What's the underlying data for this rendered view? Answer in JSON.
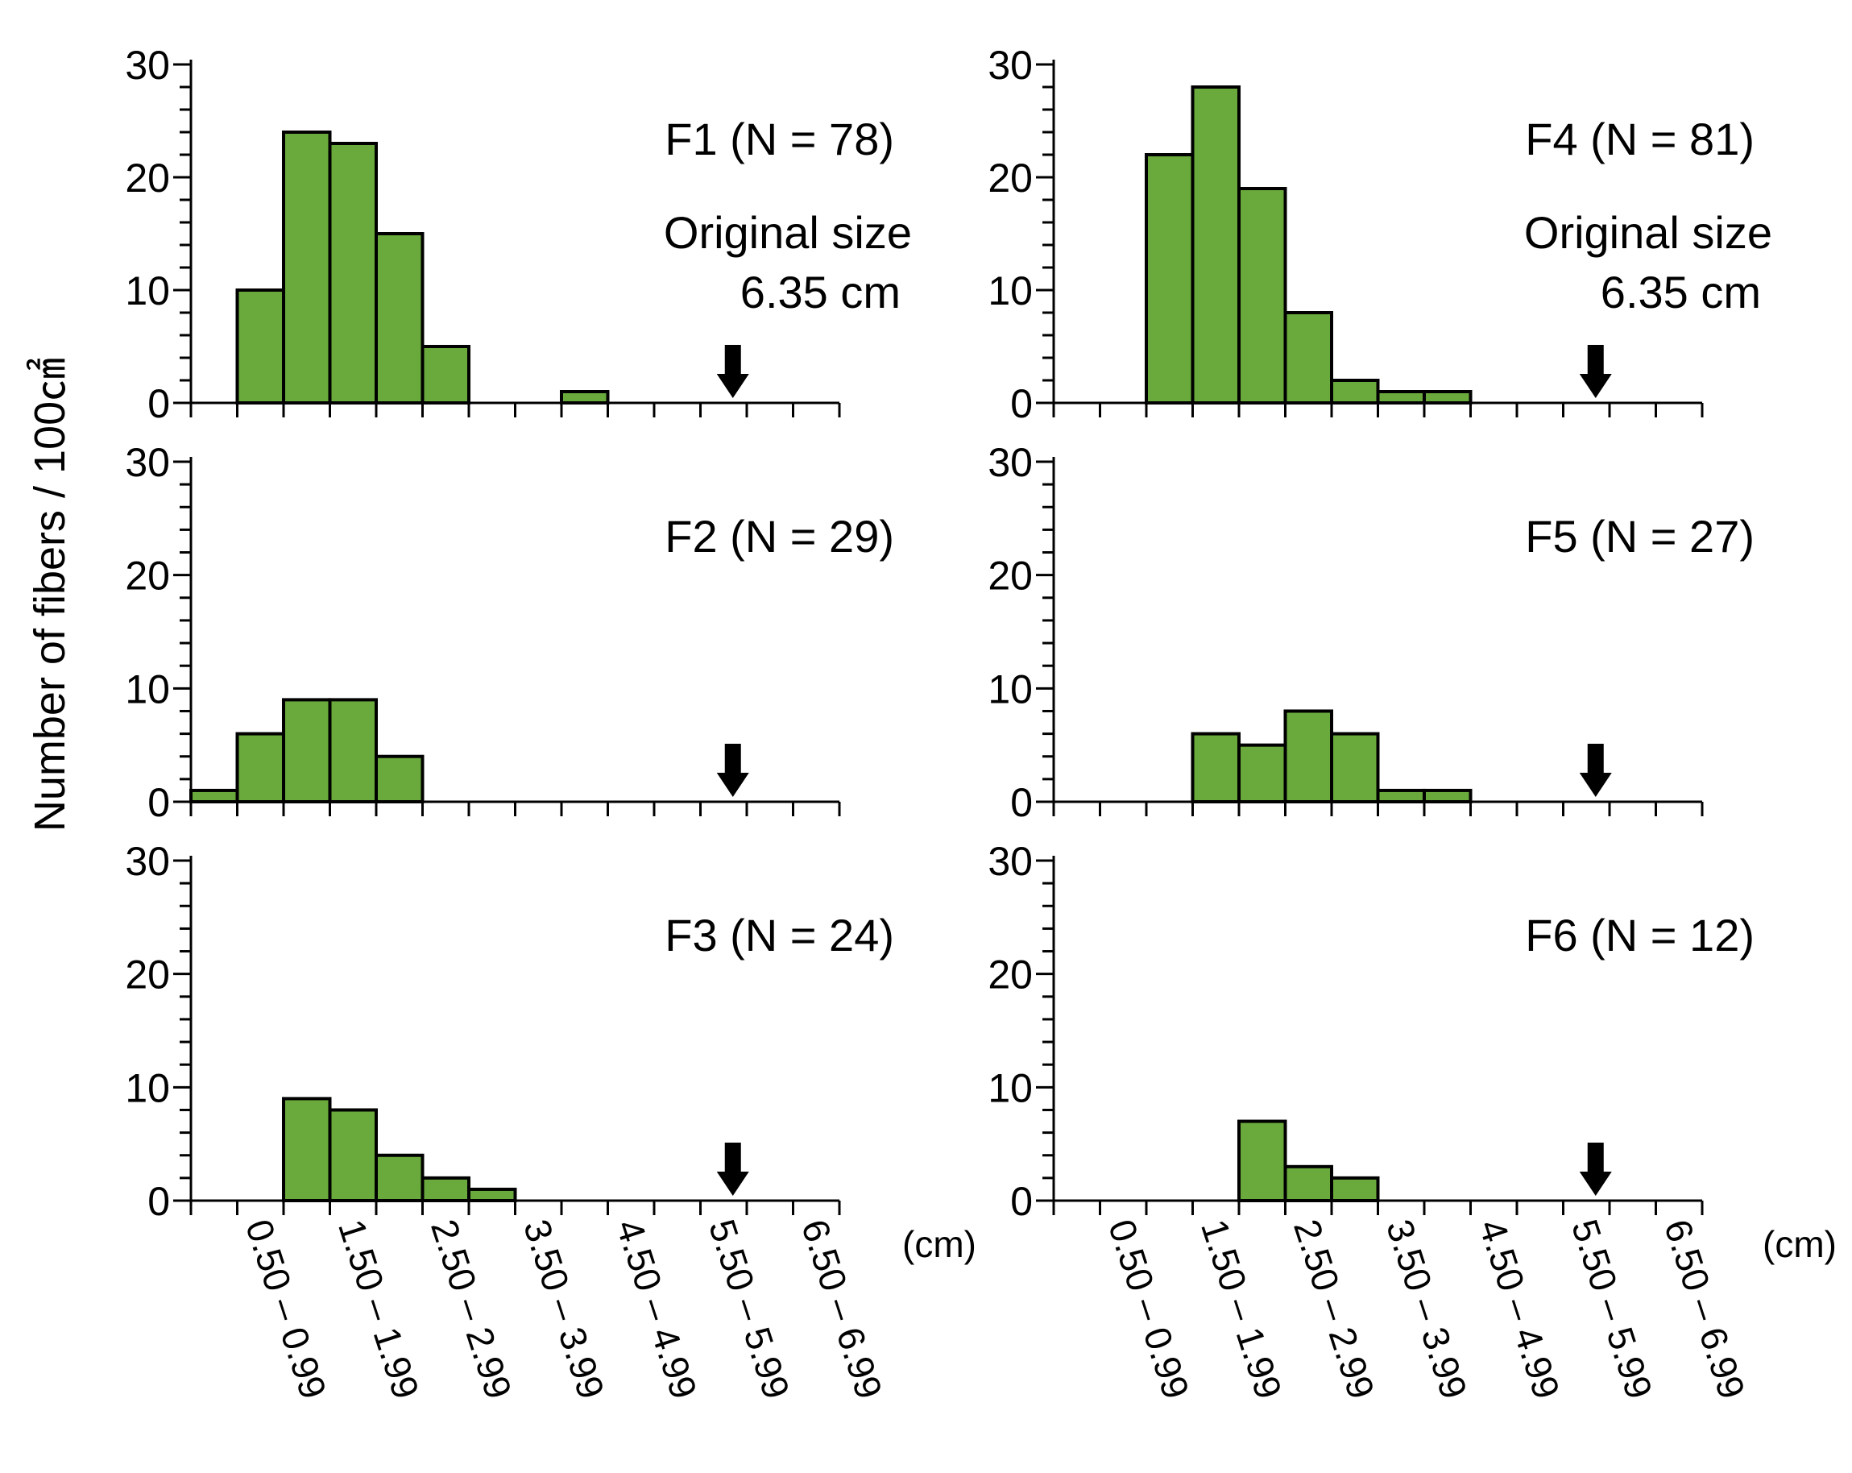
{
  "chart_data": {
    "type": "bar",
    "ylabel": "Number of fibers / 100㎠",
    "x_unit": "(cm)",
    "categories": [
      "",
      "0.50 – 0.99",
      "",
      "1.50 – 1.99",
      "",
      "2.50 – 2.99",
      "",
      "3.50 – 3.99",
      "",
      "4.50 – 4.99",
      "",
      "5.50 – 5.99",
      "",
      "6.50 – 6.99"
    ],
    "ylim": [
      0,
      30
    ],
    "yticks": [
      "0",
      "10",
      "20",
      "30"
    ],
    "original_size": {
      "label": "Original size",
      "value": "6.35 cm",
      "x": 6.35
    },
    "panels": [
      {
        "id": "F1",
        "label": "F1 (N = 78)",
        "values": [
          0,
          10,
          24,
          23,
          15,
          5,
          0,
          0,
          1,
          0,
          0,
          0,
          0,
          0
        ],
        "show_original_label": true
      },
      {
        "id": "F2",
        "label": "F2 (N = 29)",
        "values": [
          1,
          6,
          9,
          9,
          4,
          0,
          0,
          0,
          0,
          0,
          0,
          0,
          0,
          0
        ],
        "show_original_label": false
      },
      {
        "id": "F3",
        "label": "F3 (N = 24)",
        "values": [
          0,
          0,
          9,
          8,
          4,
          2,
          1,
          0,
          0,
          0,
          0,
          0,
          0,
          0
        ],
        "show_original_label": false
      },
      {
        "id": "F4",
        "label": "F4 (N = 81)",
        "values": [
          0,
          0,
          22,
          28,
          19,
          8,
          2,
          1,
          1,
          0,
          0,
          0,
          0,
          0
        ],
        "show_original_label": true
      },
      {
        "id": "F5",
        "label": "F5 (N = 27)",
        "values": [
          0,
          0,
          0,
          6,
          5,
          8,
          6,
          1,
          1,
          0,
          0,
          0,
          0,
          0
        ],
        "show_original_label": false
      },
      {
        "id": "F6",
        "label": "F6 (N = 12)",
        "values": [
          0,
          0,
          0,
          0,
          7,
          3,
          2,
          0,
          0,
          0,
          0,
          0,
          0,
          0
        ],
        "show_original_label": false
      }
    ]
  },
  "colors": {
    "bar_fill": "#6aaa3c",
    "bar_stroke": "#000000",
    "axis": "#000000"
  }
}
